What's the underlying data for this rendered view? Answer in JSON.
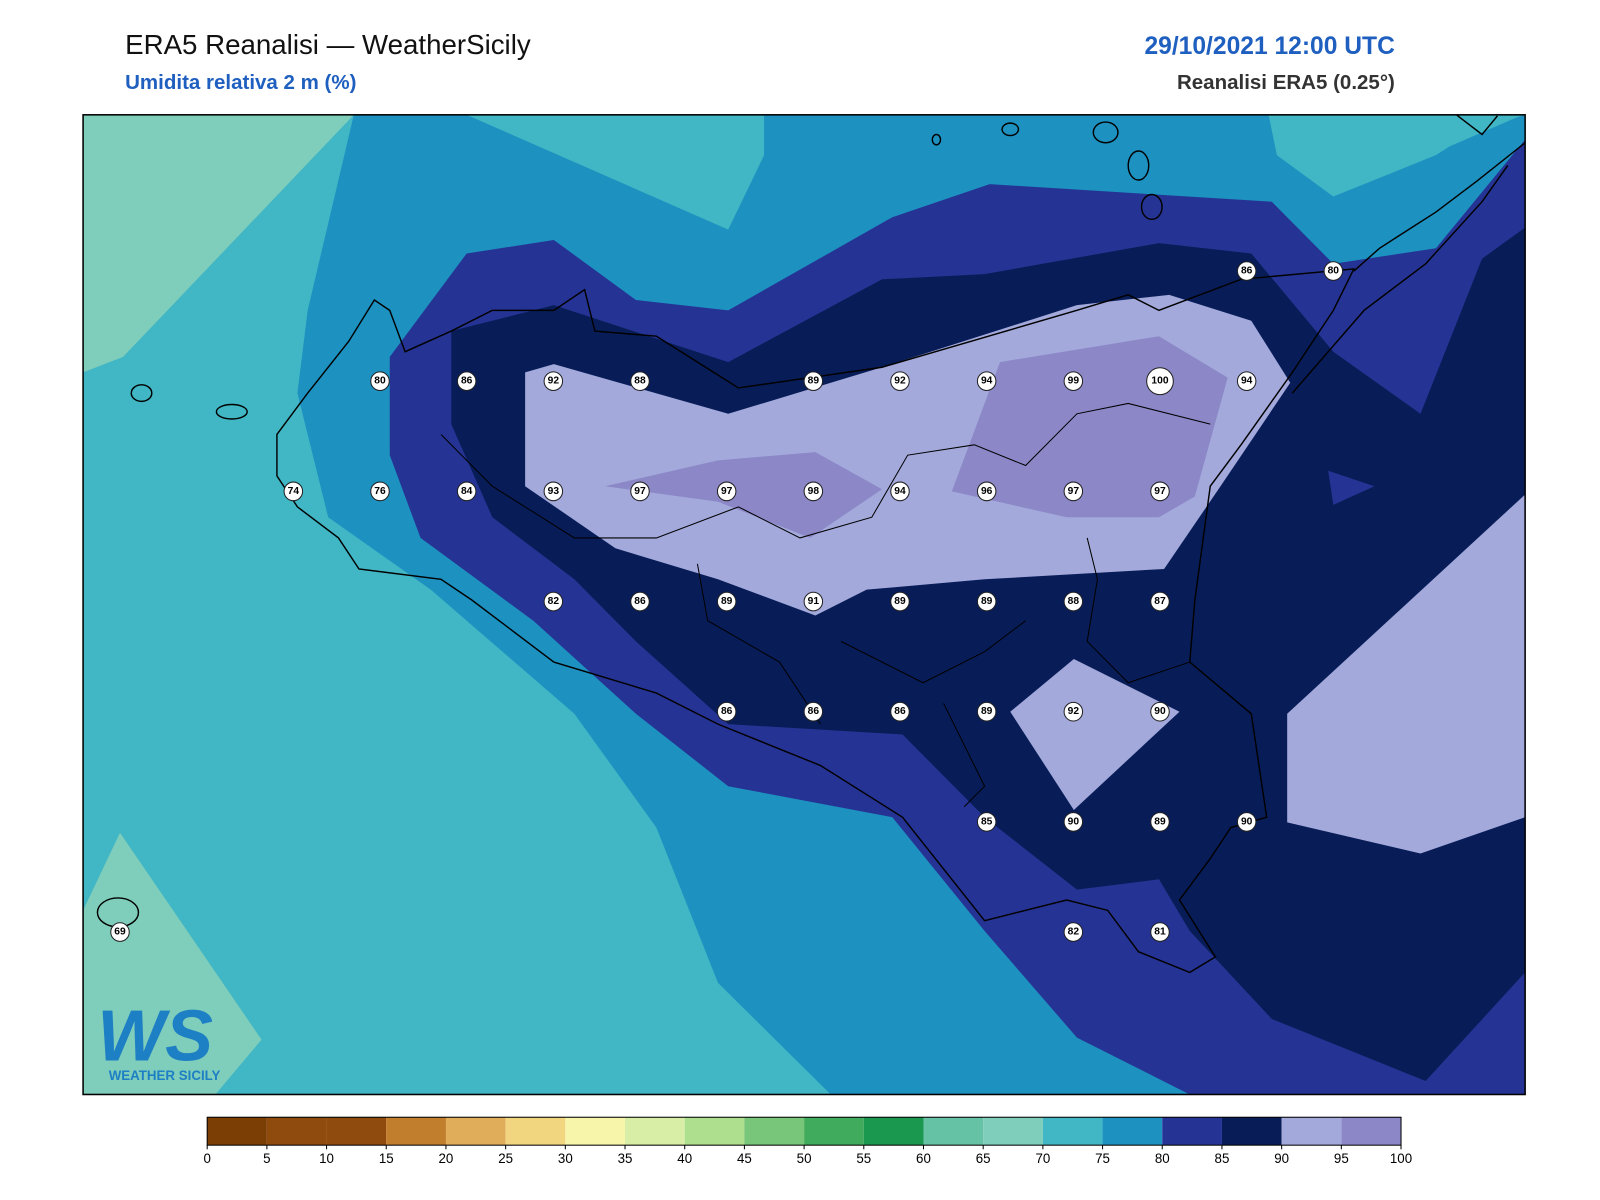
{
  "header": {
    "title": "ERA5 Reanalisi — WeatherSicily",
    "subtitle": "Umidita relativa 2 m (%)",
    "datetime": "29/10/2021 12:00 UTC",
    "source": "Reanalisi ERA5 (0.25°)"
  },
  "logo": {
    "mark": "WS",
    "name": "WEATHER SICILY"
  },
  "stations": {
    "rows": [
      [
        null,
        null,
        null,
        null,
        null,
        null,
        null,
        null,
        null,
        null,
        null,
        null,
        null,
        86,
        80
      ],
      [
        null,
        null,
        null,
        80,
        86,
        92,
        88,
        null,
        89,
        92,
        94,
        99,
        100,
        94,
        null
      ],
      [
        null,
        null,
        74,
        76,
        84,
        93,
        97,
        97,
        98,
        94,
        96,
        97,
        97,
        null,
        null
      ],
      [
        null,
        null,
        null,
        null,
        null,
        82,
        86,
        89,
        91,
        89,
        89,
        88,
        87,
        null,
        null
      ],
      [
        null,
        null,
        null,
        null,
        null,
        null,
        null,
        86,
        86,
        86,
        89,
        92,
        90,
        null,
        null
      ],
      [
        null,
        null,
        null,
        null,
        null,
        null,
        null,
        null,
        null,
        null,
        85,
        90,
        89,
        90,
        null
      ],
      [
        69,
        null,
        null,
        null,
        null,
        null,
        null,
        null,
        null,
        null,
        null,
        82,
        81,
        null,
        null
      ]
    ]
  },
  "colorbar": {
    "ticks": [
      0,
      5,
      10,
      15,
      20,
      25,
      30,
      35,
      40,
      45,
      50,
      55,
      60,
      65,
      70,
      75,
      80,
      85,
      90,
      95,
      100
    ],
    "colors": [
      "#7b3f06",
      "#8e4b0d",
      "#8e4b0d",
      "#c17f2e",
      "#e0ae5a",
      "#f1d67f",
      "#f7f5aa",
      "#d8eda6",
      "#addf8e",
      "#78c679",
      "#41ab5d",
      "#1a9850",
      "#66c2a4",
      "#7fcdbb",
      "#41b6c4",
      "#1d91c0",
      "#253494",
      "#081d58",
      "#a3a9db",
      "#8c88c8"
    ]
  }
}
